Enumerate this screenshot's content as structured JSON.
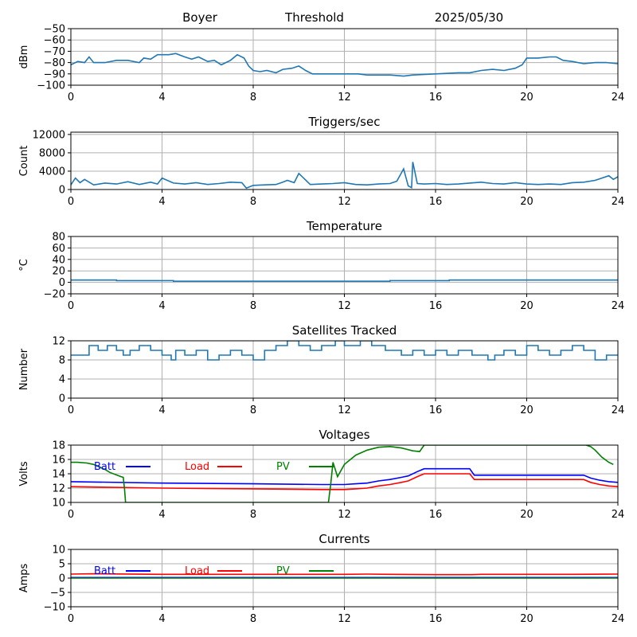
{
  "header": {
    "station": "Boyer",
    "mode": "Threshold",
    "date": "2025/05/30"
  },
  "chart_data": [
    {
      "type": "line",
      "title": "",
      "ylabel": "dBm",
      "xlabel": "",
      "xlim": [
        0,
        24
      ],
      "ylim": [
        -100,
        -50
      ],
      "xticks": [
        0,
        4,
        8,
        12,
        16,
        20,
        24
      ],
      "yticks": [
        -100,
        -90,
        -80,
        -70,
        -60,
        -50
      ],
      "ytick_labels": [
        "−100",
        "−90",
        "−80",
        "−70",
        "−60",
        "−50"
      ],
      "grid": true,
      "series": [
        {
          "color": "#1f77b4",
          "x": [
            0,
            0.3,
            0.6,
            0.8,
            1.0,
            1.5,
            2.0,
            2.5,
            3.0,
            3.2,
            3.5,
            3.8,
            4.0,
            4.3,
            4.6,
            5.0,
            5.3,
            5.6,
            6.0,
            6.3,
            6.6,
            7.0,
            7.3,
            7.6,
            7.8,
            8.0,
            8.3,
            8.6,
            9.0,
            9.3,
            9.7,
            10.0,
            10.3,
            10.6,
            11.0,
            12.0,
            12.6,
            13.0,
            14.0,
            14.6,
            15.0,
            16.0,
            17.0,
            17.5,
            18.0,
            18.5,
            19.0,
            19.5,
            19.8,
            20.0,
            20.5,
            21.0,
            21.3,
            21.6,
            22.0,
            22.5,
            23.0,
            23.5,
            24.0
          ],
          "y": [
            -82,
            -79,
            -80,
            -75,
            -80,
            -80,
            -78,
            -78,
            -80,
            -76,
            -77,
            -73,
            -73,
            -73,
            -72,
            -75,
            -77,
            -75,
            -79,
            -78,
            -82,
            -78,
            -73,
            -76,
            -83,
            -87,
            -88,
            -87,
            -89,
            -86,
            -85,
            -83,
            -87,
            -90,
            -90,
            -90,
            -90,
            -91,
            -91,
            -92,
            -91,
            -90,
            -89,
            -89,
            -87,
            -86,
            -87,
            -85,
            -82,
            -76,
            -76,
            -75,
            -75,
            -78,
            -79,
            -81,
            -80,
            -80,
            -81
          ]
        }
      ]
    },
    {
      "type": "line",
      "title": "Triggers/sec",
      "ylabel": "Count",
      "xlabel": "",
      "xlim": [
        0,
        24
      ],
      "ylim": [
        0,
        12500
      ],
      "xticks": [
        0,
        4,
        8,
        12,
        16,
        20,
        24
      ],
      "yticks": [
        0,
        4000,
        8000,
        12000
      ],
      "ytick_labels": [
        "0",
        "4000",
        "8000",
        "12000"
      ],
      "grid": true,
      "series": [
        {
          "color": "#1f77b4",
          "x": [
            0,
            0.2,
            0.4,
            0.6,
            1.0,
            1.5,
            2.0,
            2.5,
            3.0,
            3.5,
            3.8,
            4.0,
            4.5,
            5.0,
            5.5,
            6.0,
            6.5,
            7.0,
            7.5,
            7.7,
            8.0,
            8.5,
            9.0,
            9.3,
            9.5,
            9.8,
            10.0,
            10.5,
            11.0,
            11.5,
            12.0,
            12.5,
            13.0,
            13.5,
            14.0,
            14.3,
            14.6,
            14.8,
            14.95,
            15.0,
            15.2,
            15.5,
            16.0,
            16.5,
            17.0,
            17.5,
            18.0,
            18.5,
            19.0,
            19.5,
            20.0,
            20.5,
            21.0,
            21.5,
            22.0,
            22.5,
            23.0,
            23.3,
            23.6,
            23.8,
            24.0
          ],
          "y": [
            1000,
            2500,
            1500,
            2200,
            1000,
            1400,
            1200,
            1700,
            1100,
            1600,
            1200,
            2500,
            1400,
            1200,
            1500,
            1100,
            1300,
            1600,
            1500,
            300,
            900,
            1000,
            1100,
            1600,
            2000,
            1500,
            3500,
            1100,
            1200,
            1300,
            1500,
            1100,
            1000,
            1200,
            1300,
            1800,
            4500,
            800,
            400,
            6000,
            1300,
            1200,
            1300,
            1100,
            1200,
            1400,
            1600,
            1300,
            1200,
            1500,
            1200,
            1100,
            1200,
            1100,
            1500,
            1600,
            2000,
            2500,
            3000,
            2200,
            2800
          ]
        }
      ]
    },
    {
      "type": "line",
      "title": "Temperature",
      "ylabel": "°C",
      "xlabel": "",
      "xlim": [
        0,
        24
      ],
      "ylim": [
        -20,
        80
      ],
      "xticks": [
        0,
        4,
        8,
        12,
        16,
        20,
        24
      ],
      "yticks": [
        -20,
        0,
        20,
        40,
        60,
        80
      ],
      "ytick_labels": [
        "−20",
        "0",
        "20",
        "40",
        "60",
        "80"
      ],
      "grid": true,
      "series": [
        {
          "color": "#1f77b4",
          "x": [
            0,
            2.0,
            2.0,
            4.5,
            4.5,
            14.0,
            14.0,
            16.6,
            16.6,
            24.0
          ],
          "y": [
            4,
            4,
            3,
            3,
            2,
            2,
            3,
            3,
            4,
            4
          ]
        }
      ]
    },
    {
      "type": "line",
      "title": "Satellites Tracked",
      "ylabel": "Number",
      "xlabel": "",
      "xlim": [
        0,
        24
      ],
      "ylim": [
        0,
        12
      ],
      "xticks": [
        0,
        4,
        8,
        12,
        16,
        20,
        24
      ],
      "yticks": [
        0,
        4,
        8,
        12
      ],
      "ytick_labels": [
        "0",
        "4",
        "8",
        "12"
      ],
      "grid": true,
      "series": [
        {
          "color": "#1f77b4",
          "x": [
            0,
            0.8,
            0.8,
            1.2,
            1.2,
            1.6,
            1.6,
            2.0,
            2.0,
            2.3,
            2.3,
            2.6,
            2.6,
            3.0,
            3.0,
            3.5,
            3.5,
            4.0,
            4.0,
            4.4,
            4.4,
            4.6,
            4.6,
            5.0,
            5.0,
            5.5,
            5.5,
            6.0,
            6.0,
            6.5,
            6.5,
            7.0,
            7.0,
            7.5,
            7.5,
            8.0,
            8.0,
            8.5,
            8.5,
            9.0,
            9.0,
            9.5,
            9.5,
            10.0,
            10.0,
            10.5,
            10.5,
            11.0,
            11.0,
            11.6,
            11.6,
            12.0,
            12.0,
            12.7,
            12.7,
            13.2,
            13.2,
            13.8,
            13.8,
            14.5,
            14.5,
            15.0,
            15.0,
            15.5,
            15.5,
            16.0,
            16.0,
            16.5,
            16.5,
            17.0,
            17.0,
            17.6,
            17.6,
            18.3,
            18.3,
            18.6,
            18.6,
            19.0,
            19.0,
            19.5,
            19.5,
            20.0,
            20.0,
            20.5,
            20.5,
            21.0,
            21.0,
            21.5,
            21.5,
            22.0,
            22.0,
            22.5,
            22.5,
            23.0,
            23.0,
            23.5,
            23.5,
            24.0
          ],
          "y": [
            9,
            9,
            11,
            11,
            10,
            10,
            11,
            11,
            10,
            10,
            9,
            9,
            10,
            10,
            11,
            11,
            10,
            10,
            9,
            9,
            8,
            8,
            10,
            10,
            9,
            9,
            10,
            10,
            8,
            8,
            9,
            9,
            10,
            10,
            9,
            9,
            8,
            8,
            10,
            10,
            11,
            11,
            12,
            12,
            11,
            11,
            10,
            10,
            11,
            11,
            12,
            12,
            11,
            11,
            12,
            12,
            11,
            11,
            10,
            10,
            9,
            9,
            10,
            10,
            9,
            9,
            10,
            10,
            9,
            9,
            10,
            10,
            9,
            9,
            8,
            8,
            9,
            9,
            10,
            10,
            9,
            9,
            11,
            11,
            10,
            10,
            9,
            9,
            10,
            10,
            11,
            11,
            10,
            10,
            8,
            8,
            9,
            9
          ]
        }
      ]
    },
    {
      "type": "line",
      "title": "Voltages",
      "ylabel": "Volts",
      "xlabel": "",
      "xlim": [
        0,
        24
      ],
      "ylim": [
        10,
        18
      ],
      "xticks": [
        0,
        4,
        8,
        12,
        16,
        20,
        24
      ],
      "yticks": [
        10,
        12,
        14,
        16,
        18
      ],
      "ytick_labels": [
        "10",
        "12",
        "14",
        "16",
        "18"
      ],
      "grid": true,
      "legend": [
        {
          "label": "Batt",
          "color": "#0000ff"
        },
        {
          "label": "Load",
          "color": "#ff0000"
        },
        {
          "label": "PV",
          "color": "#008000"
        }
      ],
      "series": [
        {
          "name": "Batt",
          "color": "#0000ff",
          "x": [
            0,
            4,
            8,
            11,
            12,
            12.5,
            13.0,
            13.5,
            14.0,
            14.5,
            14.8,
            15.2,
            15.5,
            17.5,
            17.7,
            22.5,
            22.8,
            23.2,
            23.6,
            24.0
          ],
          "y": [
            12.9,
            12.7,
            12.6,
            12.5,
            12.5,
            12.6,
            12.7,
            13.0,
            13.2,
            13.5,
            13.7,
            14.3,
            14.7,
            14.7,
            13.8,
            13.8,
            13.4,
            13.1,
            12.9,
            12.8
          ]
        },
        {
          "name": "Load",
          "color": "#ff0000",
          "x": [
            0,
            4,
            8,
            11,
            12,
            12.5,
            13.0,
            13.5,
            14.0,
            14.5,
            14.8,
            15.2,
            15.5,
            17.5,
            17.7,
            22.5,
            22.8,
            23.2,
            23.6,
            24.0
          ],
          "y": [
            12.2,
            12.0,
            11.9,
            11.8,
            11.8,
            11.9,
            12.0,
            12.3,
            12.5,
            12.8,
            13.0,
            13.6,
            14.0,
            14.0,
            13.2,
            13.2,
            12.8,
            12.5,
            12.3,
            12.2
          ],
          "note": ""
        },
        {
          "name": "PV",
          "color": "#008000",
          "x": [
            0,
            0.3,
            0.7,
            1.0,
            1.5,
            1.7,
            2.2,
            2.3,
            2.35,
            2.4,
            11.3,
            11.4,
            11.5,
            11.7,
            12.0,
            12.5,
            13.0,
            13.5,
            14.0,
            14.5,
            15.0,
            15.3,
            15.5,
            22.6,
            22.8,
            23.0,
            23.3,
            23.6,
            23.8
          ],
          "y": [
            15.6,
            15.6,
            15.5,
            15.3,
            14.6,
            14.2,
            13.6,
            13.5,
            12.0,
            10.0,
            10.0,
            12.5,
            15.6,
            13.6,
            15.3,
            16.6,
            17.3,
            17.7,
            17.8,
            17.6,
            17.2,
            17.1,
            18.0,
            18.0,
            17.8,
            17.3,
            16.3,
            15.6,
            15.3
          ]
        }
      ]
    },
    {
      "type": "line",
      "title": "Currents",
      "ylabel": "Amps",
      "xlabel": "",
      "xlim": [
        0,
        24
      ],
      "ylim": [
        -10,
        10
      ],
      "xticks": [
        0,
        4,
        8,
        12,
        16,
        20,
        24
      ],
      "yticks": [
        -10,
        -5,
        0,
        5,
        10
      ],
      "ytick_labels": [
        "−10",
        "−5",
        "0",
        "5",
        "10"
      ],
      "grid": true,
      "legend": [
        {
          "label": "Batt",
          "color": "#0000ff"
        },
        {
          "label": "Load",
          "color": "#ff0000"
        },
        {
          "label": "PV",
          "color": "#008000"
        }
      ],
      "series": [
        {
          "name": "Batt",
          "color": "#0000ff",
          "x": [
            0,
            24
          ],
          "y": [
            0.2,
            0.2
          ]
        },
        {
          "name": "Load",
          "color": "#ff0000",
          "x": [
            0,
            1,
            4,
            8,
            12,
            13,
            14,
            16,
            17.6,
            18,
            20,
            22,
            24
          ],
          "y": [
            1.4,
            1.5,
            1.3,
            1.3,
            1.3,
            1.4,
            1.3,
            1.2,
            1.2,
            1.3,
            1.3,
            1.3,
            1.4
          ]
        },
        {
          "name": "PV",
          "color": "#008000",
          "x": [
            0,
            24
          ],
          "y": [
            0.0,
            0.0
          ]
        }
      ]
    }
  ]
}
